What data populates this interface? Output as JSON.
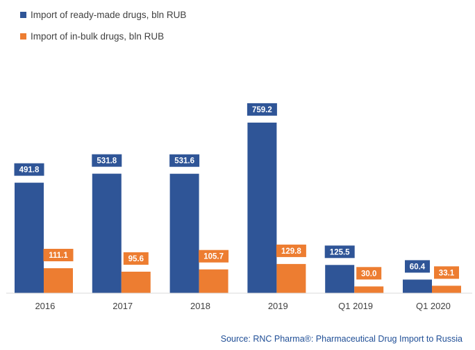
{
  "chart_data": {
    "type": "bar",
    "title": "",
    "xlabel": "",
    "ylabel": "",
    "ylim": [
      0,
      800
    ],
    "grid": false,
    "legend_position": "top-left",
    "categories": [
      "2016",
      "2017",
      "2018",
      "2019",
      "Q1 2019",
      "Q1 2020"
    ],
    "series": [
      {
        "name": "Import of ready-made drugs, bln RUB",
        "color": "#2f5597",
        "values": [
          491.8,
          531.8,
          531.6,
          759.2,
          125.5,
          60.4
        ],
        "labels": [
          "491.8",
          "531.8",
          "531.6",
          "759.2",
          "125.5",
          "60.4"
        ]
      },
      {
        "name": "Import of in-bulk drugs, bln RUB",
        "color": "#ed7d31",
        "values": [
          111.1,
          95.6,
          105.7,
          129.8,
          30.0,
          33.1
        ],
        "labels": [
          "111.1",
          "95.6",
          "105.7",
          "129.8",
          "30.0",
          "33.1"
        ]
      }
    ],
    "source": "Source: RNC Pharma®: Pharmaceutical Drug Import to Russia"
  }
}
